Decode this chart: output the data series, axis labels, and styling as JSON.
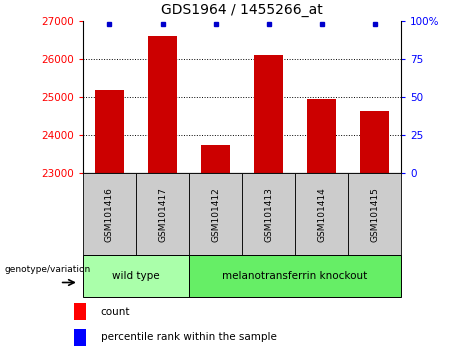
{
  "title": "GDS1964 / 1455266_at",
  "samples": [
    "GSM101416",
    "GSM101417",
    "GSM101412",
    "GSM101413",
    "GSM101414",
    "GSM101415"
  ],
  "counts": [
    25200,
    26600,
    23750,
    26100,
    24950,
    24650
  ],
  "percentile_ranks": [
    100,
    100,
    100,
    100,
    100,
    100
  ],
  "ymin": 23000,
  "ymax": 27000,
  "yticks": [
    23000,
    24000,
    25000,
    26000,
    27000
  ],
  "right_yticks": [
    0,
    25,
    50,
    75,
    100
  ],
  "bar_color": "#cc0000",
  "percentile_color": "#0000cc",
  "bar_width": 0.55,
  "groups": [
    {
      "label": "wild type",
      "indices": [
        0,
        1
      ],
      "color": "#aaffaa"
    },
    {
      "label": "melanotransferrin knockout",
      "indices": [
        2,
        3,
        4,
        5
      ],
      "color": "#66ee66"
    }
  ],
  "group_label": "genotype/variation",
  "legend_count_label": "count",
  "legend_percentile_label": "percentile rank within the sample",
  "title_fontsize": 10,
  "sample_fontsize": 6.5,
  "legend_fontsize": 7.5,
  "group_fontsize": 7.5
}
